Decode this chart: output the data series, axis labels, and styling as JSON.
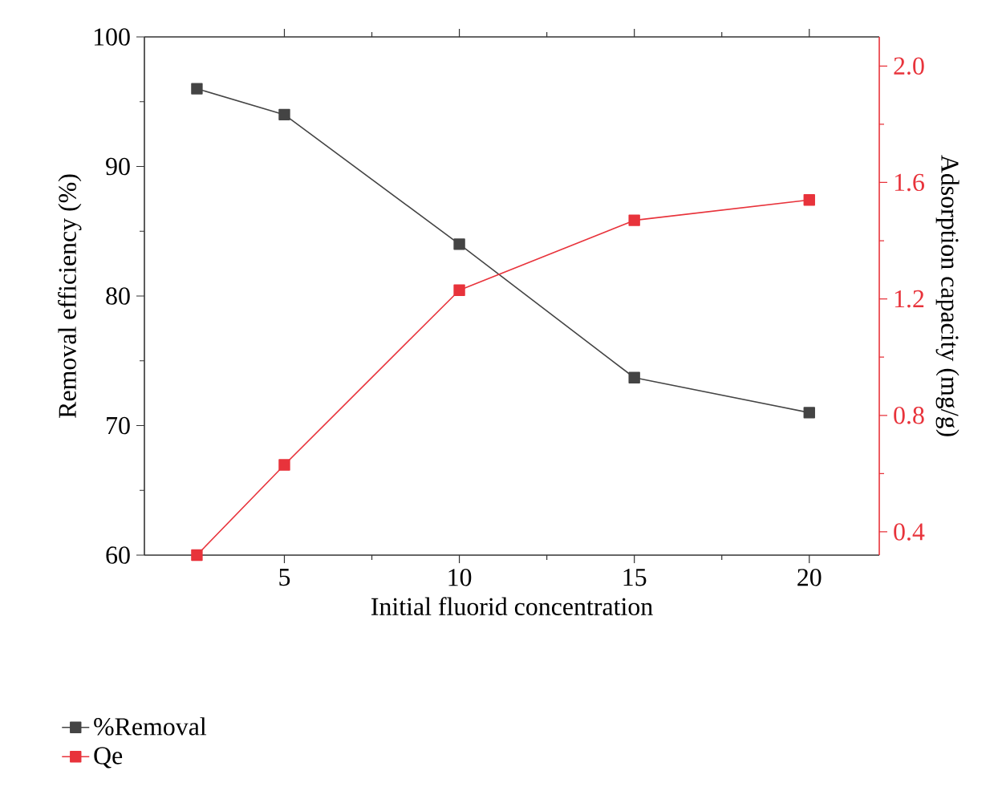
{
  "chart_data": {
    "type": "line",
    "x": [
      2.5,
      5,
      10,
      15,
      20
    ],
    "xlabel": "Initial fluorid concentration",
    "ylabel": "Removal efficiency (%)",
    "y2label": "Adsorption capacity (mg/g)",
    "series": [
      {
        "name": "%Removal",
        "color": "#444444",
        "values": [
          96,
          94,
          84,
          73.7,
          71
        ]
      },
      {
        "name": "Qe",
        "color": "#e8333b",
        "axis": "y2",
        "values": [
          0.32,
          0.63,
          1.23,
          1.47,
          1.54
        ]
      }
    ],
    "xlim": [
      1,
      22
    ],
    "xticks": [
      5,
      10,
      15,
      20
    ],
    "ylim": [
      60,
      100
    ],
    "yticks": [
      60,
      70,
      80,
      90,
      100
    ],
    "y2lim": [
      0.32,
      2.1
    ],
    "y2ticks": [
      {
        "value": 0.4,
        "label": "0.4"
      },
      {
        "value": 0.8,
        "label": "0.8"
      },
      {
        "value": 1.2,
        "label": "1.2"
      },
      {
        "value": 1.6,
        "label": "1.6"
      },
      {
        "value": 2.0,
        "label": "2.0"
      }
    ],
    "marker": "square",
    "line_style": "solid",
    "grid": false,
    "legend": "bottom left"
  }
}
